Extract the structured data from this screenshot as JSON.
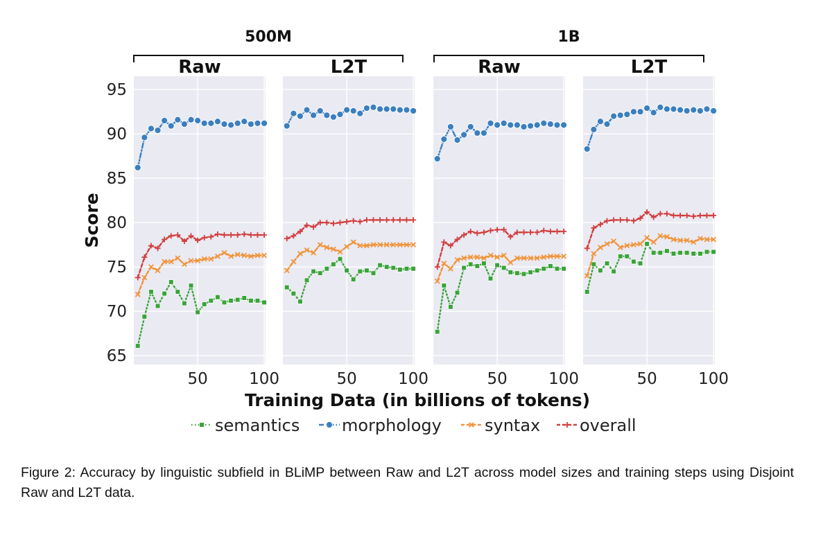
{
  "chart_data": {
    "type": "line",
    "xlabel": "Training Data (in billions of tokens)",
    "ylabel": "Score",
    "xlim": [
      2,
      101
    ],
    "ylim": [
      64,
      96.5
    ],
    "xticks": [
      50,
      100
    ],
    "yticks": [
      65,
      70,
      75,
      80,
      85,
      90,
      95
    ],
    "grid": true,
    "legend_position": "bottom",
    "groups": [
      {
        "label": "500M",
        "panels": [
          0,
          1
        ]
      },
      {
        "label": "1B",
        "panels": [
          2,
          3
        ]
      }
    ],
    "series_styles": [
      {
        "key": "semantics",
        "name": "semantics",
        "color": "#3aa33a",
        "marker": "square",
        "dash": "dotted"
      },
      {
        "key": "morphology",
        "name": "morphology",
        "color": "#3b7fbf",
        "marker": "circle",
        "dash": "dashdot"
      },
      {
        "key": "syntax",
        "name": "syntax",
        "color": "#f0943a",
        "marker": "x",
        "dash": "dashed"
      },
      {
        "key": "overall",
        "name": "overall",
        "color": "#d13f3f",
        "marker": "plus",
        "dash": "dashed"
      }
    ],
    "panels": [
      {
        "title": "Raw",
        "x": [
          5,
          10,
          15,
          20,
          25,
          30,
          35,
          40,
          45,
          50,
          55,
          60,
          65,
          70,
          75,
          80,
          85,
          90,
          95,
          100
        ],
        "series": {
          "morphology": [
            86.2,
            89.6,
            90.6,
            90.4,
            91.5,
            90.9,
            91.6,
            91.1,
            91.6,
            91.5,
            91.2,
            91.2,
            91.4,
            91.1,
            91.0,
            91.2,
            91.4,
            91.1,
            91.2,
            91.2
          ],
          "overall": [
            73.8,
            76.1,
            77.4,
            77.1,
            78.1,
            78.5,
            78.6,
            77.9,
            78.5,
            78.0,
            78.3,
            78.4,
            78.7,
            78.6,
            78.6,
            78.6,
            78.7,
            78.6,
            78.6,
            78.6
          ],
          "syntax": [
            71.9,
            73.8,
            75.0,
            74.6,
            75.6,
            75.6,
            76.0,
            75.3,
            75.7,
            75.7,
            75.9,
            75.9,
            76.2,
            76.6,
            76.2,
            76.4,
            76.3,
            76.2,
            76.3,
            76.3
          ],
          "semantics": [
            66.1,
            69.4,
            72.2,
            70.6,
            72.0,
            73.3,
            72.2,
            70.9,
            72.9,
            69.9,
            70.8,
            71.2,
            71.6,
            71.0,
            71.2,
            71.3,
            71.5,
            71.2,
            71.2,
            71.0
          ]
        }
      },
      {
        "title": "L2T",
        "x": [
          5,
          10,
          15,
          20,
          25,
          30,
          35,
          40,
          45,
          50,
          55,
          60,
          65,
          70,
          75,
          80,
          85,
          90,
          95,
          100
        ],
        "series": {
          "morphology": [
            90.9,
            92.3,
            92.0,
            92.7,
            92.1,
            92.6,
            92.1,
            91.9,
            92.2,
            92.7,
            92.6,
            92.3,
            92.9,
            93.0,
            92.8,
            92.8,
            92.8,
            92.7,
            92.7,
            92.6
          ],
          "overall": [
            78.2,
            78.5,
            79.0,
            79.7,
            79.5,
            80.0,
            80.0,
            79.9,
            80.0,
            80.1,
            80.2,
            80.1,
            80.3,
            80.3,
            80.3,
            80.3,
            80.3,
            80.3,
            80.3,
            80.3
          ],
          "syntax": [
            74.6,
            75.6,
            76.5,
            76.9,
            76.6,
            77.5,
            77.2,
            77.0,
            76.7,
            77.3,
            77.8,
            77.4,
            77.4,
            77.5,
            77.5,
            77.5,
            77.5,
            77.5,
            77.5,
            77.5
          ],
          "semantics": [
            72.7,
            72.0,
            71.1,
            73.5,
            74.5,
            74.3,
            74.8,
            75.3,
            75.9,
            74.6,
            73.6,
            74.5,
            74.6,
            74.3,
            75.2,
            75.0,
            74.9,
            74.7,
            74.8,
            74.8
          ]
        }
      },
      {
        "title": "Raw",
        "x": [
          5,
          10,
          15,
          20,
          25,
          30,
          35,
          40,
          45,
          50,
          55,
          60,
          65,
          70,
          75,
          80,
          85,
          90,
          95,
          100
        ],
        "series": {
          "morphology": [
            87.2,
            89.4,
            90.8,
            89.3,
            89.9,
            90.8,
            90.1,
            90.1,
            91.2,
            91.0,
            91.2,
            91.0,
            91.0,
            90.8,
            90.9,
            91.0,
            91.2,
            91.1,
            91.0,
            91.0
          ],
          "overall": [
            75.0,
            77.8,
            77.4,
            78.1,
            78.6,
            79.0,
            78.8,
            78.9,
            79.1,
            79.2,
            79.2,
            78.4,
            78.9,
            78.9,
            78.9,
            78.9,
            79.1,
            79.0,
            79.0,
            79.0
          ],
          "syntax": [
            73.4,
            75.4,
            74.8,
            75.8,
            76.0,
            76.1,
            76.1,
            76.0,
            76.3,
            76.1,
            76.3,
            75.5,
            76.0,
            76.0,
            76.0,
            76.0,
            76.1,
            76.2,
            76.2,
            76.2
          ],
          "semantics": [
            67.7,
            72.9,
            70.5,
            72.1,
            74.9,
            75.3,
            75.1,
            75.4,
            73.7,
            75.2,
            74.9,
            74.4,
            74.3,
            74.2,
            74.4,
            74.6,
            74.8,
            75.1,
            74.8,
            74.8
          ]
        }
      },
      {
        "title": "L2T",
        "x": [
          5,
          10,
          15,
          20,
          25,
          30,
          35,
          40,
          45,
          50,
          55,
          60,
          65,
          70,
          75,
          80,
          85,
          90,
          95,
          100
        ],
        "series": {
          "morphology": [
            88.3,
            90.5,
            91.4,
            91.1,
            92.0,
            92.1,
            92.2,
            92.5,
            92.5,
            92.9,
            92.4,
            93.0,
            92.8,
            92.8,
            92.7,
            92.6,
            92.7,
            92.6,
            92.8,
            92.6
          ],
          "overall": [
            77.1,
            79.4,
            79.8,
            80.2,
            80.3,
            80.3,
            80.3,
            80.2,
            80.5,
            81.2,
            80.6,
            81.0,
            81.0,
            80.8,
            80.8,
            80.8,
            80.7,
            80.8,
            80.8,
            80.8
          ],
          "syntax": [
            74.0,
            76.5,
            77.2,
            77.6,
            77.9,
            77.2,
            77.4,
            77.5,
            77.6,
            78.3,
            77.8,
            78.5,
            78.4,
            78.1,
            78.0,
            78.0,
            77.8,
            78.2,
            78.1,
            78.1
          ],
          "semantics": [
            72.2,
            75.3,
            74.6,
            75.4,
            74.5,
            76.2,
            76.2,
            75.6,
            75.4,
            77.6,
            76.6,
            76.6,
            76.8,
            76.5,
            76.6,
            76.6,
            76.5,
            76.5,
            76.7,
            76.7
          ]
        }
      }
    ]
  },
  "caption": "Figure 2: Accuracy by linguistic subfield in BLiMP between Raw and L2T across model sizes and training steps using Disjoint Raw and L2T data."
}
